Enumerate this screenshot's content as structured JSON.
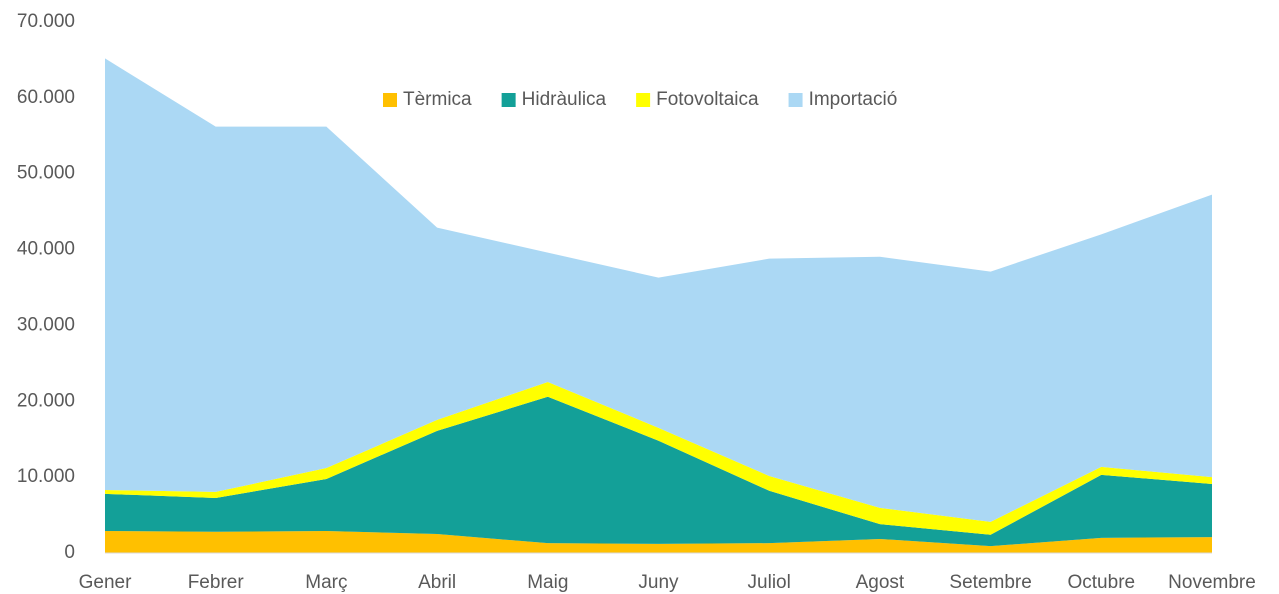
{
  "chart_data": {
    "type": "stacked_area",
    "categories": [
      "Gener",
      "Febrer",
      "Març",
      "Abril",
      "Maig",
      "Juny",
      "Juliol",
      "Agost",
      "Setembre",
      "Octubre",
      "Novembre"
    ],
    "series": [
      {
        "name": "Tèrmica",
        "color": "#ffc000",
        "values": [
          2900,
          2800,
          2900,
          2500,
          1300,
          1200,
          1300,
          1850,
          900,
          2000,
          2100
        ]
      },
      {
        "name": "Hidràulica",
        "color": "#13a098",
        "values": [
          4900,
          4450,
          6860,
          13600,
          19300,
          13600,
          6900,
          1950,
          1500,
          8300,
          7000
        ]
      },
      {
        "name": "Fotovoltaica",
        "color": "#ffff00",
        "values": [
          500,
          800,
          1440,
          1450,
          1950,
          1700,
          1950,
          2150,
          1700,
          1050,
          900
        ]
      },
      {
        "name": "Importació",
        "color": "#abd8f4",
        "values": [
          56900,
          48150,
          45000,
          25350,
          17050,
          19800,
          28650,
          33100,
          33000,
          30650,
          37250
        ]
      }
    ],
    "ylim": [
      0,
      70000
    ],
    "yticks": [
      0,
      {
        "value": 10000,
        "label": "10.000"
      },
      {
        "value": 20000,
        "label": "20.000"
      },
      {
        "value": 30000,
        "label": "30.000"
      },
      {
        "value": 40000,
        "label": "40.000"
      },
      {
        "value": 50000,
        "label": "50.000"
      },
      {
        "value": 60000,
        "label": "60.000"
      },
      {
        "value": 70000,
        "label": "70.000"
      }
    ],
    "grid": false,
    "legend": "top"
  }
}
